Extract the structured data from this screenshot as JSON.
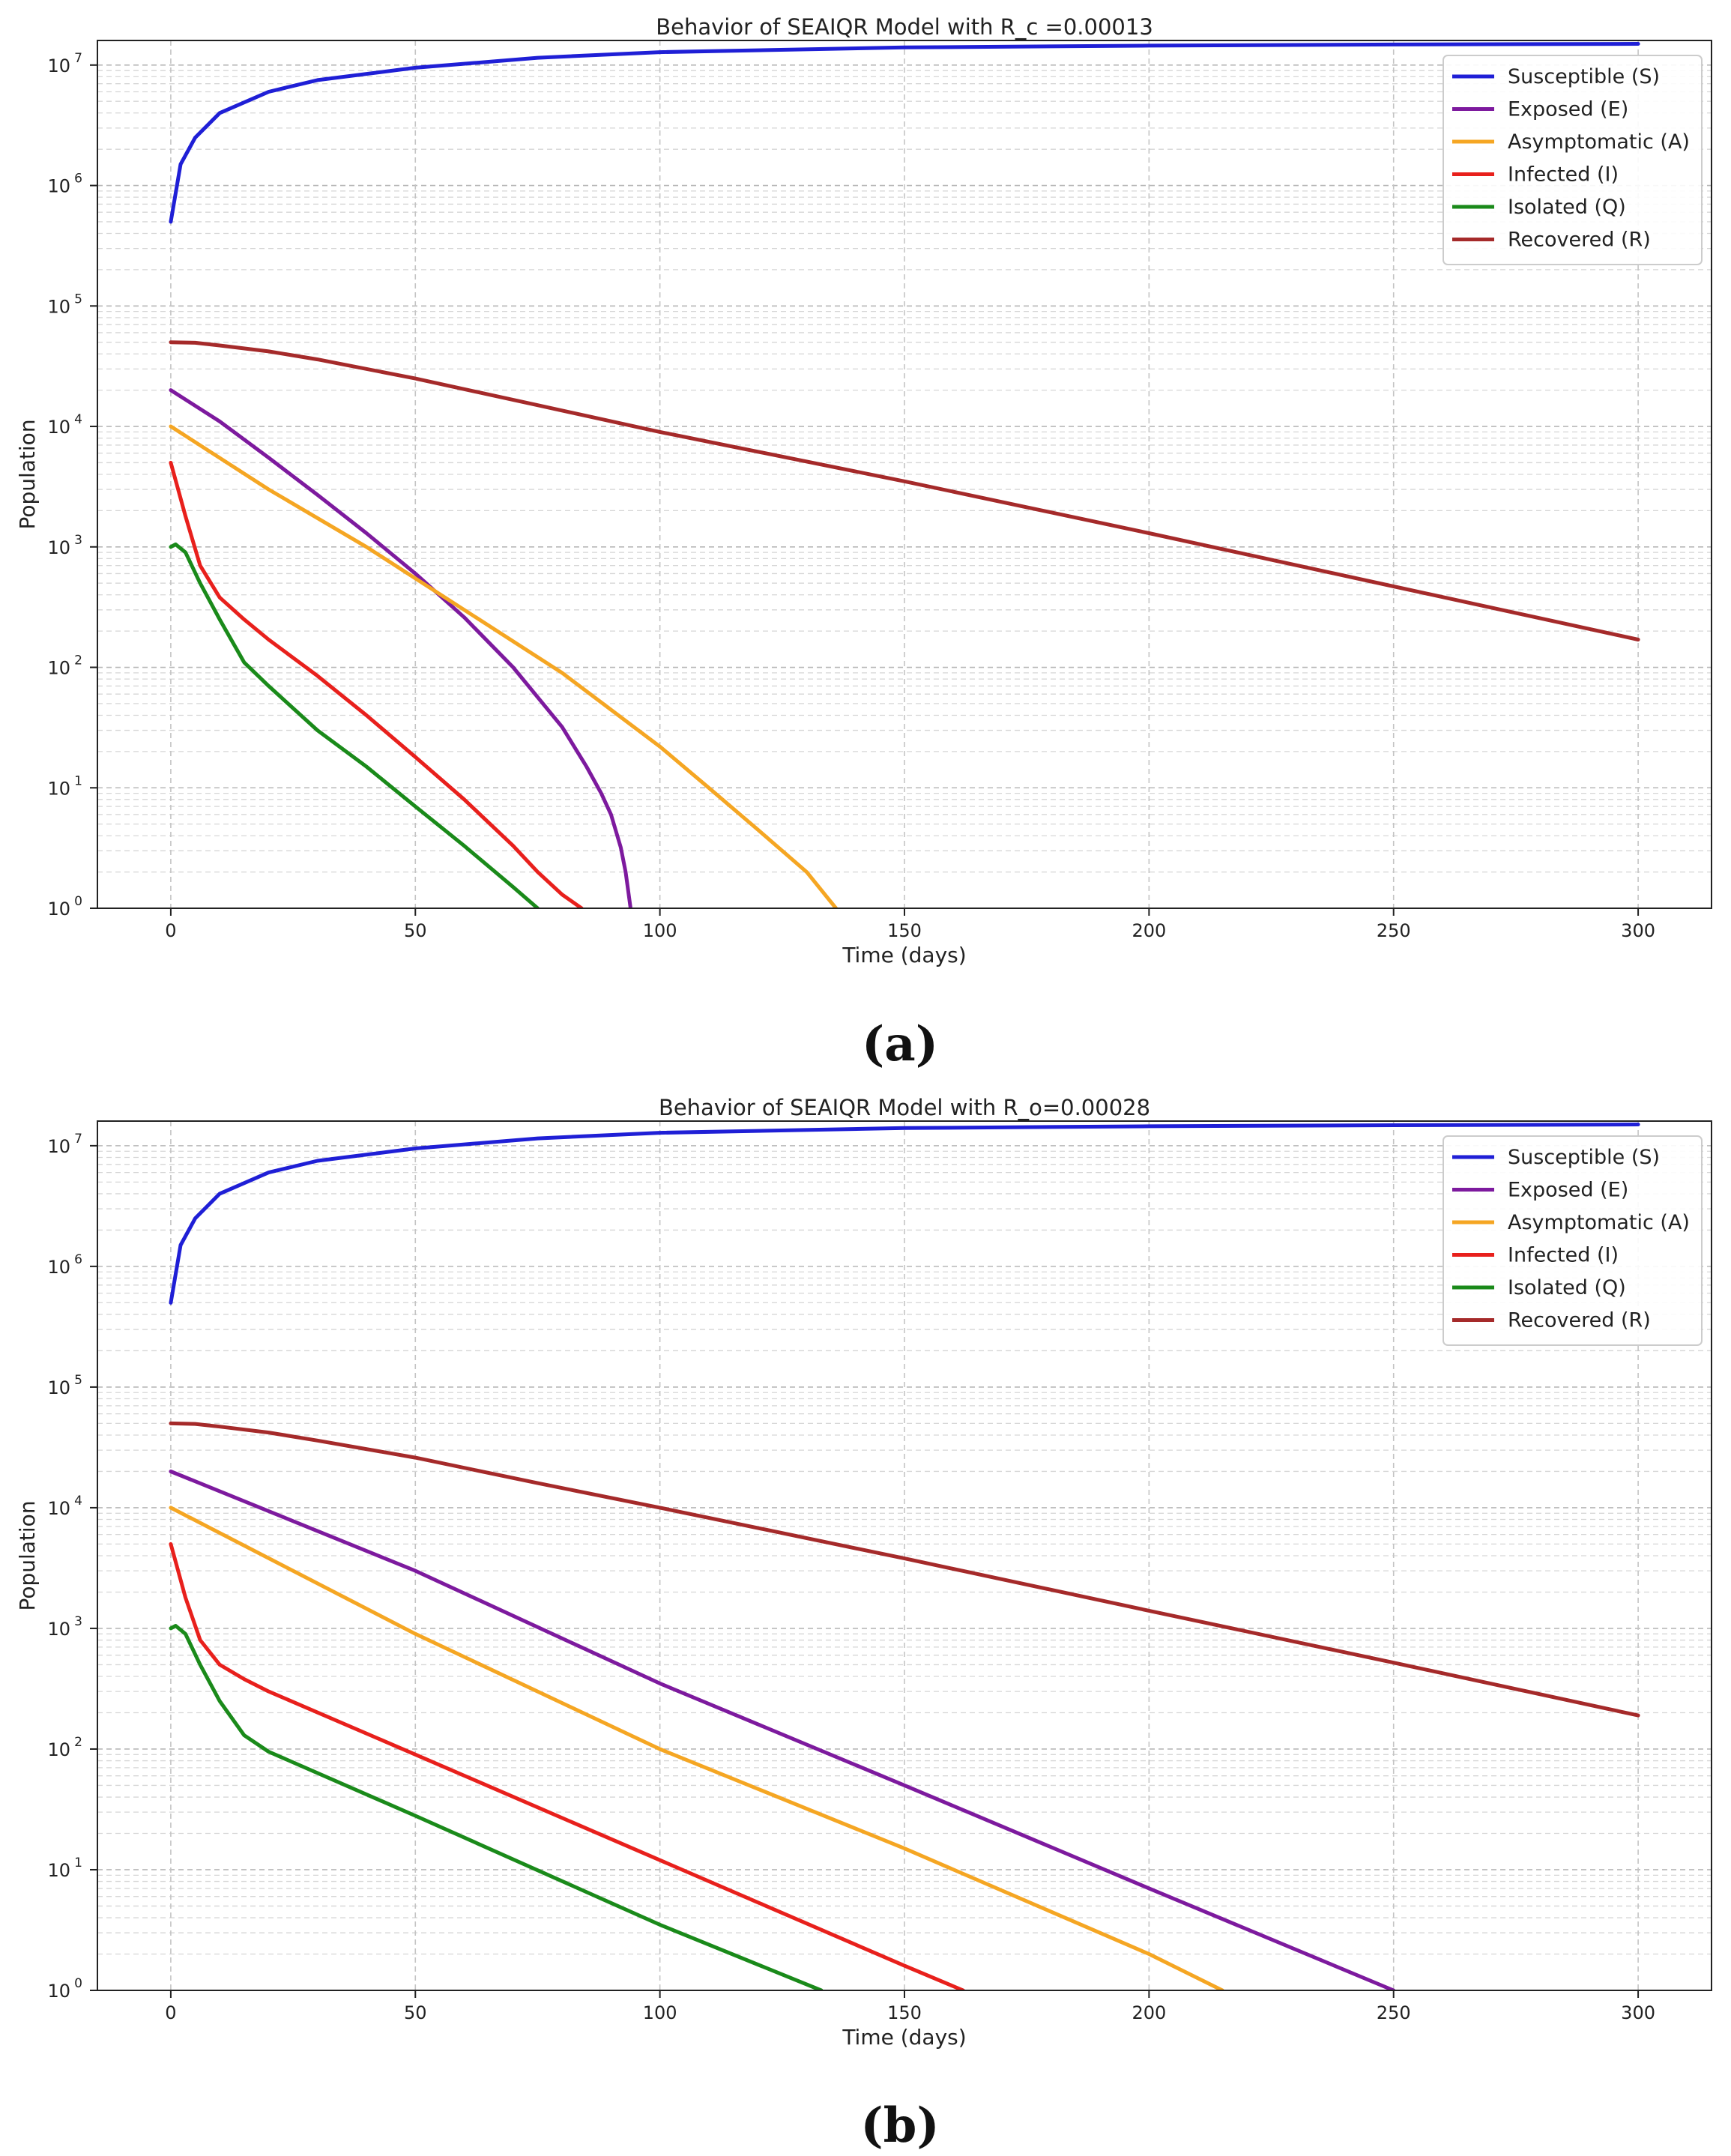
{
  "chart_data": [
    {
      "type": "line",
      "panel_label": "(a)",
      "title": "Behavior of SEAIQR Model with R_c =0.00013",
      "xlabel": "Time (days)",
      "ylabel": "Population",
      "yscale": "log",
      "xlim": [
        -15,
        315
      ],
      "ylim": [
        1,
        16000000
      ],
      "xticks": [
        0,
        50,
        100,
        150,
        200,
        250,
        300
      ],
      "xtick_labels": [
        "0",
        "50",
        "100",
        "150",
        "200",
        "250",
        "300"
      ],
      "yticks": [
        1,
        10,
        100,
        1000,
        10000,
        100000,
        1000000,
        10000000
      ],
      "ytick_mantissa": "10",
      "ytick_exponents": [
        "0",
        "1",
        "2",
        "3",
        "4",
        "5",
        "6",
        "7"
      ],
      "grid": true,
      "legend_position": "top-right",
      "series": [
        {
          "name": "Susceptible (S)",
          "color": "#1f1fd6",
          "x": [
            0,
            2,
            5,
            10,
            20,
            30,
            50,
            75,
            100,
            150,
            200,
            250,
            300
          ],
          "values": [
            500000,
            1500000,
            2500000,
            4000000,
            6000000,
            7500000,
            9500000,
            11500000,
            12800000,
            14000000,
            14500000,
            14800000,
            15000000
          ]
        },
        {
          "name": "Exposed (E)",
          "color": "#7d1a9e",
          "x": [
            0,
            10,
            20,
            30,
            40,
            50,
            60,
            70,
            80,
            85,
            88,
            90,
            92,
            93,
            94
          ],
          "values": [
            20000,
            11000,
            5500,
            2700,
            1300,
            600,
            260,
            100,
            32,
            15,
            9,
            6,
            3.2,
            2,
            1
          ]
        },
        {
          "name": "Asymptomatic (A)",
          "color": "#f5a623",
          "x": [
            0,
            20,
            40,
            60,
            80,
            100,
            110,
            120,
            130,
            136
          ],
          "values": [
            10000,
            3000,
            1000,
            300,
            90,
            22,
            10,
            4.5,
            2,
            1
          ]
        },
        {
          "name": "Infected (I)",
          "color": "#e8201c",
          "x": [
            0,
            3,
            6,
            10,
            15,
            20,
            30,
            40,
            50,
            60,
            70,
            75,
            80,
            84
          ],
          "values": [
            5000,
            1800,
            700,
            380,
            250,
            170,
            85,
            40,
            18,
            8,
            3.3,
            2,
            1.3,
            1
          ]
        },
        {
          "name": "Isolated (Q)",
          "color": "#1a8a1a",
          "x": [
            0,
            1,
            3,
            6,
            10,
            15,
            20,
            30,
            40,
            50,
            60,
            70,
            75
          ],
          "values": [
            1000,
            1050,
            900,
            500,
            250,
            110,
            70,
            30,
            15,
            7,
            3.3,
            1.5,
            1
          ]
        },
        {
          "name": "Recovered (R)",
          "color": "#a52a2a",
          "x": [
            0,
            5,
            10,
            20,
            30,
            50,
            75,
            100,
            150,
            200,
            250,
            300
          ],
          "values": [
            50000,
            49500,
            47000,
            42000,
            36000,
            25000,
            15000,
            9000,
            3500,
            1300,
            470,
            170
          ]
        }
      ]
    },
    {
      "type": "line",
      "panel_label": "(b)",
      "title": "Behavior of SEAIQR Model with R_o=0.00028",
      "xlabel": "Time (days)",
      "ylabel": "Population",
      "yscale": "log",
      "xlim": [
        -15,
        315
      ],
      "ylim": [
        1,
        16000000
      ],
      "xticks": [
        0,
        50,
        100,
        150,
        200,
        250,
        300
      ],
      "xtick_labels": [
        "0",
        "50",
        "100",
        "150",
        "200",
        "250",
        "300"
      ],
      "yticks": [
        1,
        10,
        100,
        1000,
        10000,
        100000,
        1000000,
        10000000
      ],
      "ytick_mantissa": "10",
      "ytick_exponents": [
        "0",
        "1",
        "2",
        "3",
        "4",
        "5",
        "6",
        "7"
      ],
      "grid": true,
      "legend_position": "top-right",
      "series": [
        {
          "name": "Susceptible (S)",
          "color": "#1f1fd6",
          "x": [
            0,
            2,
            5,
            10,
            20,
            30,
            50,
            75,
            100,
            150,
            200,
            250,
            300
          ],
          "values": [
            500000,
            1500000,
            2500000,
            4000000,
            6000000,
            7500000,
            9500000,
            11500000,
            12800000,
            14000000,
            14500000,
            14800000,
            15000000
          ]
        },
        {
          "name": "Exposed (E)",
          "color": "#7d1a9e",
          "x": [
            0,
            50,
            100,
            150,
            200,
            250
          ],
          "values": [
            20000,
            3000,
            350,
            50,
            7,
            1
          ]
        },
        {
          "name": "Asymptomatic (A)",
          "color": "#f5a623",
          "x": [
            0,
            50,
            100,
            150,
            200,
            215
          ],
          "values": [
            10000,
            900,
            100,
            15,
            2,
            1
          ]
        },
        {
          "name": "Infected (I)",
          "color": "#e8201c",
          "x": [
            0,
            3,
            6,
            10,
            15,
            20,
            50,
            100,
            150,
            162
          ],
          "values": [
            5000,
            1800,
            800,
            500,
            380,
            300,
            90,
            12,
            1.6,
            1
          ]
        },
        {
          "name": "Isolated (Q)",
          "color": "#1a8a1a",
          "x": [
            0,
            1,
            3,
            6,
            10,
            15,
            20,
            50,
            100,
            133
          ],
          "values": [
            1000,
            1050,
            900,
            500,
            250,
            130,
            95,
            28,
            3.5,
            1
          ]
        },
        {
          "name": "Recovered (R)",
          "color": "#a52a2a",
          "x": [
            0,
            5,
            10,
            20,
            30,
            50,
            75,
            100,
            150,
            200,
            250,
            300
          ],
          "values": [
            50000,
            49500,
            47000,
            42000,
            36000,
            26000,
            16000,
            10000,
            3800,
            1400,
            520,
            190
          ]
        }
      ]
    }
  ]
}
